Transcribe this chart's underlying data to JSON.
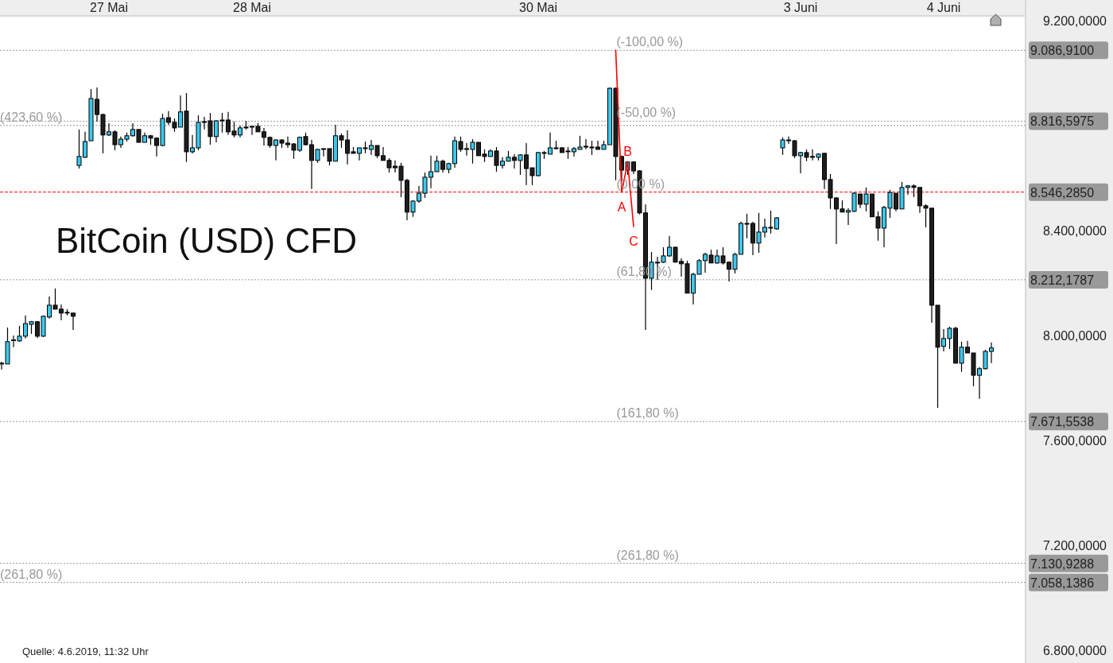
{
  "chart_data": {
    "type": "candlestick",
    "title": "BitCoin (USD) CFD",
    "annotations": [
      "Quelle: 4.6.2019, 11:32 Uhr",
      {
        "text": "(-100,00 %)",
        "y": 9086.91
      },
      {
        "text": "(-50,00 %)",
        "y": 8816.5975
      },
      {
        "text": "(0,00 %)",
        "y": 8546.285
      },
      {
        "text": "(61,80 %)",
        "y": 8212.1787
      },
      {
        "text": "(161,80 %)",
        "y": 7671.5538
      },
      {
        "text": "(261,80 %)",
        "y": 7130.9288
      },
      {
        "text": "(423,60 %)",
        "y": 8800
      },
      {
        "text": "(261,80 %)",
        "y": 7058.1386
      }
    ],
    "categories": [
      null,
      null,
      null,
      null,
      null,
      null,
      null,
      null,
      null,
      null,
      null,
      null,
      null,
      null,
      null,
      null,
      null,
      null,
      "27 Mai",
      null,
      null,
      null,
      null,
      null,
      null,
      null,
      null,
      null,
      null,
      null,
      null,
      null,
      null,
      null,
      null,
      null,
      null,
      null,
      null,
      null,
      null,
      null,
      "28 Mai",
      null,
      null,
      null,
      null,
      null,
      null,
      null,
      null,
      null,
      null,
      null,
      null,
      null,
      null,
      null,
      null,
      null,
      null,
      null,
      null,
      null,
      null,
      null,
      null,
      null,
      null,
      null,
      null,
      null,
      null,
      null,
      null,
      null,
      null,
      null,
      null,
      null,
      null,
      null,
      null,
      null,
      null,
      null,
      null,
      null,
      null,
      null,
      "30 Mai",
      null,
      null,
      null,
      null,
      null,
      null,
      null,
      null,
      null,
      null,
      null,
      null,
      null,
      null,
      null,
      null,
      null,
      null,
      null,
      null,
      null,
      null,
      null,
      null,
      null,
      null,
      null,
      null,
      null,
      null,
      null,
      null,
      null,
      null,
      null,
      null,
      null,
      null,
      null,
      null,
      null,
      null,
      null,
      "3 Juni",
      null,
      null,
      null,
      null,
      null,
      null,
      null,
      null,
      null,
      null,
      null,
      null,
      null,
      null,
      null,
      null,
      null,
      null,
      null,
      null,
      null,
      null,
      null,
      "4 Juni",
      null,
      null,
      null,
      null,
      null,
      null,
      null,
      null
    ],
    "colors": [
      "#3cc8ee",
      "#3cc8ee",
      "#3cc8ee",
      "#3cc8ee",
      "#3cc8ee",
      "#3cc8ee",
      "#1e1e1e",
      "#3cc8ee",
      "#3cc8ee",
      "#1e1e1e",
      "#1e1e1e",
      "#1e1e1e",
      "#1e1e1e",
      "#3cc8ee",
      "#3cc8ee",
      "#3cc8ee",
      "#1e1e1e",
      "#1e1e1e",
      "#3cc8ee",
      "#1e1e1e",
      "#3cc8ee",
      "#3cc8ee",
      "#3cc8ee",
      "#1e1e1e",
      "#3cc8ee",
      "#1e1e1e",
      "#1e1e1e",
      "#3cc8ee",
      "#1e1e1e",
      "#1e1e1e",
      "#3cc8ee",
      "#1e1e1e",
      "#3cc8ee",
      "#3cc8ee",
      "#3cc8ee",
      "#1e1e1e",
      "#3cc8ee",
      "#3cc8ee",
      "#1e1e1e",
      "#1e1e1e",
      "#3cc8ee",
      "#3cc8ee",
      "#3cc8ee",
      "#1e1e1e",
      "#1e1e1e",
      "#1e1e1e",
      "#3cc8ee",
      "#1e1e1e",
      "#1e1e1e",
      "#1e1e1e",
      "#3cc8ee",
      "#1e1e1e",
      "#1e1e1e",
      "#3cc8ee",
      "#3cc8ee",
      "#1e1e1e",
      "#3cc8ee",
      "#1e1e1e",
      "#1e1e1e",
      "#1e1e1e",
      "#3cc8ee",
      "#3cc8ee",
      "#3cc8ee",
      "#1e1e1e",
      "#1e1e1e",
      "#1e1e1e",
      "#1e1e1e",
      "#1e1e1e",
      "#1e1e1e",
      "#3cc8ee",
      "#3cc8ee",
      "#3cc8ee",
      "#3cc8ee",
      "#3cc8ee",
      "#1e1e1e",
      "#3cc8ee",
      "#3cc8ee",
      "#1e1e1e",
      "#3cc8ee",
      "#3cc8ee",
      "#1e1e1e",
      "#1e1e1e",
      "#3cc8ee",
      "#1e1e1e",
      "#3cc8ee",
      "#3cc8ee",
      "#1e1e1e",
      "#3cc8ee",
      "#1e1e1e",
      "#1e1e1e",
      "#3cc8ee",
      "#3cc8ee",
      "#3cc8ee",
      "#3cc8ee",
      "#1e1e1e",
      "#1e1e1e",
      "#3cc8ee",
      "#3cc8ee",
      "#3cc8ee",
      "#1e1e1e",
      "#1e1e1e",
      "#3cc8ee",
      "#3cc8ee",
      "#1e1e1e",
      "#1e1e1e",
      "#3cc8ee",
      "#1e1e1e",
      "#1e1e1e",
      "#1e1e1e",
      "#3cc8ee",
      "#3cc8ee",
      "#3cc8ee",
      "#3cc8ee",
      "#1e1e1e",
      "#1e1e1e",
      "#1e1e1e",
      "#3cc8ee",
      "#3cc8ee",
      "#3cc8ee",
      "#1e1e1e",
      "#3cc8ee",
      "#1e1e1e",
      "#1e1e1e",
      "#3cc8ee",
      "#3cc8ee",
      "#3cc8ee",
      "#1e1e1e",
      "#3cc8ee",
      "#3cc8ee",
      "#3cc8ee",
      "#3cc8ee",
      "#3cc8ee",
      "#3cc8ee",
      "#1e1e1e",
      "#3cc8ee",
      "#1e1e1e",
      "#1e1e1e",
      "#3cc8ee",
      "#1e1e1e",
      "#1e1e1e",
      "#1e1e1e",
      "#1e1e1e",
      "#3cc8ee",
      "#3cc8ee",
      "#1e1e1e",
      "#3cc8ee",
      "#1e1e1e",
      "#1e1e1e",
      "#3cc8ee",
      "#3cc8ee",
      "#1e1e1e",
      "#3cc8ee",
      "#3cc8ee",
      "#1e1e1e",
      "#1e1e1e",
      "#1e1e1e",
      "#1e1e1e",
      "#1e1e1e",
      "#3cc8ee",
      "#3cc8ee",
      "#1e1e1e",
      "#3cc8ee",
      "#1e1e1e",
      "#1e1e1e",
      "#3cc8ee",
      "#3cc8ee",
      "#3cc8ee"
    ],
    "ohlc": [
      [
        7891,
        7900,
        7870,
        7894
      ],
      [
        7891,
        8030,
        7891,
        7976
      ],
      [
        7980,
        8000,
        7955,
        7983
      ],
      [
        7979,
        8036,
        7976,
        7997
      ],
      [
        7997,
        8076,
        7988,
        8045
      ],
      [
        8042,
        8055,
        8006,
        8052
      ],
      [
        8052,
        8055,
        7990,
        7997
      ],
      [
        7997,
        8076,
        7994,
        8073
      ],
      [
        8070,
        8148,
        8064,
        8115
      ],
      [
        8115,
        8179,
        8100,
        8100
      ],
      [
        8100,
        8118,
        8058,
        8085
      ],
      [
        8088,
        8100,
        8076,
        8086
      ],
      [
        8085,
        8085,
        8021,
        8073
      ],
      [
        8648,
        8785,
        8636,
        8682
      ],
      [
        8679,
        8776,
        8676,
        8739
      ],
      [
        8742,
        8939,
        8742,
        8903
      ],
      [
        8900,
        8945,
        8815,
        8842
      ],
      [
        8842,
        8845,
        8694,
        8764
      ],
      [
        8764,
        8809,
        8760,
        8776
      ],
      [
        8776,
        8782,
        8706,
        8727
      ],
      [
        8727,
        8758,
        8715,
        8748
      ],
      [
        8748,
        8773,
        8739,
        8761
      ],
      [
        8761,
        8809,
        8758,
        8785
      ],
      [
        8785,
        8785,
        8736,
        8736
      ],
      [
        8736,
        8773,
        8736,
        8761
      ],
      [
        8761,
        8764,
        8727,
        8752
      ],
      [
        8752,
        8755,
        8682,
        8724
      ],
      [
        8724,
        8845,
        8721,
        8827
      ],
      [
        8830,
        8855,
        8803,
        8812
      ],
      [
        8812,
        8827,
        8776,
        8791
      ],
      [
        8794,
        8915,
        8794,
        8852
      ],
      [
        8855,
        8924,
        8661,
        8700
      ],
      [
        8700,
        8764,
        8694,
        8715
      ],
      [
        8715,
        8839,
        8706,
        8812
      ],
      [
        8812,
        8833,
        8785,
        8815
      ],
      [
        8818,
        8848,
        8727,
        8758
      ],
      [
        8758,
        8821,
        8736,
        8818
      ],
      [
        8818,
        8848,
        8773,
        8821
      ],
      [
        8821,
        8852,
        8764,
        8776
      ],
      [
        8779,
        8815,
        8755,
        8764
      ],
      [
        8764,
        8800,
        8755,
        8791
      ],
      [
        8791,
        8818,
        8785,
        8794
      ],
      [
        8794,
        8797,
        8764,
        8797
      ],
      [
        8797,
        8809,
        8776,
        8776
      ],
      [
        8776,
        8791,
        8724,
        8755
      ],
      [
        8755,
        8758,
        8715,
        8724
      ],
      [
        8724,
        8748,
        8667,
        8745
      ],
      [
        8745,
        8748,
        8715,
        8733
      ],
      [
        8733,
        8758,
        8715,
        8727
      ],
      [
        8730,
        8733,
        8673,
        8706
      ],
      [
        8706,
        8758,
        8700,
        8755
      ],
      [
        8758,
        8773,
        8724,
        8727
      ],
      [
        8727,
        8745,
        8558,
        8667
      ],
      [
        8667,
        8712,
        8658,
        8709
      ],
      [
        8709,
        8712,
        8682,
        8712
      ],
      [
        8712,
        8712,
        8648,
        8664
      ],
      [
        8664,
        8803,
        8664,
        8761
      ],
      [
        8761,
        8770,
        8715,
        8745
      ],
      [
        8745,
        8782,
        8652,
        8694
      ],
      [
        8700,
        8718,
        8694,
        8694
      ],
      [
        8694,
        8715,
        8667,
        8715
      ],
      [
        8712,
        8739,
        8694,
        8715
      ],
      [
        8709,
        8745,
        8688,
        8724
      ],
      [
        8724,
        8724,
        8676,
        8685
      ],
      [
        8685,
        8718,
        8667,
        8667
      ],
      [
        8667,
        8676,
        8621,
        8639
      ],
      [
        8645,
        8667,
        8621,
        8639
      ],
      [
        8645,
        8658,
        8527,
        8591
      ],
      [
        8591,
        8597,
        8439,
        8470
      ],
      [
        8470,
        8515,
        8452,
        8512
      ],
      [
        8512,
        8570,
        8506,
        8542
      ],
      [
        8542,
        8621,
        8524,
        8603
      ],
      [
        8603,
        8685,
        8561,
        8624
      ],
      [
        8624,
        8685,
        8624,
        8664
      ],
      [
        8664,
        8670,
        8621,
        8633
      ],
      [
        8633,
        8658,
        8618,
        8655
      ],
      [
        8655,
        8758,
        8639,
        8742
      ],
      [
        8739,
        8758,
        8700,
        8709
      ],
      [
        8709,
        8733,
        8685,
        8712
      ],
      [
        8709,
        8748,
        8655,
        8736
      ],
      [
        8736,
        8736,
        8685,
        8685
      ],
      [
        8691,
        8709,
        8661,
        8682
      ],
      [
        8682,
        8709,
        8682,
        8703
      ],
      [
        8703,
        8718,
        8624,
        8648
      ],
      [
        8648,
        8679,
        8636,
        8664
      ],
      [
        8664,
        8703,
        8664,
        8679
      ],
      [
        8679,
        8691,
        8636,
        8667
      ],
      [
        8667,
        8691,
        8612,
        8688
      ],
      [
        8688,
        8733,
        8573,
        8636
      ],
      [
        8639,
        8639,
        8573,
        8609
      ],
      [
        8609,
        8700,
        8606,
        8697
      ],
      [
        8694,
        8703,
        8673,
        8697
      ],
      [
        8691,
        8773,
        8691,
        8715
      ],
      [
        8712,
        8742,
        8709,
        8715
      ],
      [
        8715,
        8718,
        8697,
        8697
      ],
      [
        8703,
        8718,
        8673,
        8700
      ],
      [
        8700,
        8718,
        8682,
        8712
      ],
      [
        8709,
        8761,
        8709,
        8718
      ],
      [
        8718,
        8748,
        8709,
        8721
      ],
      [
        8718,
        8742,
        8688,
        8715
      ],
      [
        8718,
        8742,
        8709,
        8709
      ],
      [
        8709,
        8742,
        8709,
        8727
      ],
      [
        8727,
        8945,
        8727,
        8942
      ],
      [
        8942,
        8945,
        8591,
        8682
      ],
      [
        8682,
        8685,
        8591,
        8630
      ],
      [
        8630,
        8664,
        8612,
        8661
      ],
      [
        8661,
        8664,
        8615,
        8627
      ],
      [
        8627,
        8630,
        8461,
        8467
      ],
      [
        8467,
        8500,
        8021,
        8218
      ],
      [
        8218,
        8318,
        8173,
        8279
      ],
      [
        8276,
        8300,
        8212,
        8279
      ],
      [
        8279,
        8336,
        8276,
        8303
      ],
      [
        8303,
        8379,
        8300,
        8336
      ],
      [
        8336,
        8339,
        8279,
        8279
      ],
      [
        8282,
        8294,
        8224,
        8273
      ],
      [
        8273,
        8285,
        8161,
        8161
      ],
      [
        8161,
        8239,
        8118,
        8233
      ],
      [
        8233,
        8291,
        8233,
        8285
      ],
      [
        8285,
        8315,
        8239,
        8309
      ],
      [
        8306,
        8327,
        8276,
        8276
      ],
      [
        8276,
        8327,
        8273,
        8303
      ],
      [
        8303,
        8336,
        8270,
        8276
      ],
      [
        8279,
        8282,
        8206,
        8252
      ],
      [
        8252,
        8315,
        8236,
        8309
      ],
      [
        8309,
        8433,
        8309,
        8427
      ],
      [
        8424,
        8464,
        8370,
        8427
      ],
      [
        8427,
        8433,
        8306,
        8352
      ],
      [
        8352,
        8467,
        8315,
        8394
      ],
      [
        8394,
        8445,
        8373,
        8412
      ],
      [
        8409,
        8476,
        8388,
        8412
      ],
      [
        8406,
        8451,
        8403,
        8448
      ],
      [
        8715,
        8755,
        8688,
        8745
      ],
      [
        8742,
        8758,
        8730,
        8745
      ],
      [
        8742,
        8745,
        8676,
        8685
      ],
      [
        8685,
        8700,
        8618,
        8697
      ],
      [
        8697,
        8709,
        8664,
        8679
      ],
      [
        8682,
        8709,
        8667,
        8679
      ],
      [
        8679,
        8694,
        8667,
        8691
      ],
      [
        8694,
        8697,
        8558,
        8594
      ],
      [
        8594,
        8615,
        8482,
        8524
      ],
      [
        8524,
        8527,
        8348,
        8482
      ],
      [
        8482,
        8515,
        8470,
        8470
      ],
      [
        8470,
        8485,
        8421,
        8476
      ],
      [
        8473,
        8545,
        8470,
        8542
      ],
      [
        8539,
        8539,
        8485,
        8500
      ],
      [
        8500,
        8564,
        8473,
        8539
      ],
      [
        8539,
        8539,
        8452,
        8452
      ],
      [
        8452,
        8473,
        8361,
        8409
      ],
      [
        8409,
        8494,
        8336,
        8488
      ],
      [
        8485,
        8555,
        8448,
        8545
      ],
      [
        8542,
        8542,
        8473,
        8482
      ],
      [
        8482,
        8585,
        8482,
        8564
      ],
      [
        8564,
        8573,
        8536,
        8570
      ],
      [
        8570,
        8576,
        8527,
        8564
      ],
      [
        8564,
        8564,
        8467,
        8494
      ],
      [
        8494,
        8500,
        8412,
        8485
      ],
      [
        8485,
        8485,
        8048,
        8115
      ],
      [
        8115,
        8115,
        7724,
        7955
      ],
      [
        7958,
        8024,
        7939,
        7988
      ],
      [
        7988,
        8033,
        7948,
        8027
      ],
      [
        8027,
        8033,
        7894,
        7894
      ],
      [
        7894,
        7976,
        7861,
        7955
      ],
      [
        7955,
        7979,
        7933,
        7933
      ],
      [
        7933,
        7933,
        7806,
        7848
      ],
      [
        7848,
        7879,
        7758,
        7873
      ],
      [
        7873,
        7945,
        7870,
        7939
      ],
      [
        7939,
        7973,
        7894,
        7952
      ]
    ],
    "series": [
      {
        "type": "line",
        "color": "#ff0000",
        "values": [
          null,
          null,
          null,
          null,
          null,
          null,
          null,
          null,
          null,
          null,
          null,
          null,
          null,
          null,
          null,
          null,
          null,
          null,
          null,
          null,
          null,
          null,
          null,
          null,
          null,
          null,
          null,
          null,
          null,
          null,
          null,
          null,
          null,
          null,
          null,
          null,
          null,
          null,
          null,
          null,
          null,
          null,
          null,
          null,
          null,
          null,
          null,
          null,
          null,
          null,
          null,
          null,
          null,
          null,
          null,
          null,
          null,
          null,
          null,
          null,
          null,
          null,
          null,
          null,
          null,
          null,
          null,
          null,
          null,
          null,
          null,
          null,
          null,
          null,
          null,
          null,
          null,
          null,
          null,
          null,
          null,
          null,
          null,
          null,
          null,
          null,
          null,
          null,
          null,
          null,
          null,
          null,
          null,
          null,
          null,
          null,
          null,
          null,
          null,
          null,
          null,
          null,
          null,
          9087,
          8546,
          8661,
          8415,
          null,
          null,
          null,
          null,
          null,
          null,
          null,
          null,
          null,
          null,
          null,
          null,
          null,
          null,
          null,
          null,
          null,
          null,
          null,
          null,
          null,
          null,
          null,
          null,
          null,
          null,
          null,
          null,
          null,
          null,
          null,
          null,
          null,
          null,
          null,
          null,
          null,
          null,
          null,
          null,
          null,
          null,
          null,
          null,
          null,
          null,
          null,
          null,
          null,
          null,
          null,
          null,
          null,
          null,
          null,
          null,
          null,
          null,
          null,
          null
        ],
        "value_labels": [
          null,
          null,
          null,
          null,
          null,
          null,
          null,
          null,
          null,
          null,
          null,
          null,
          null,
          null,
          null,
          null,
          null,
          null,
          null,
          null,
          null,
          null,
          null,
          null,
          null,
          null,
          null,
          null,
          null,
          null,
          null,
          null,
          null,
          null,
          null,
          null,
          null,
          null,
          null,
          null,
          null,
          null,
          null,
          null,
          null,
          null,
          null,
          null,
          null,
          null,
          null,
          null,
          null,
          null,
          null,
          null,
          null,
          null,
          null,
          null,
          null,
          null,
          null,
          null,
          null,
          null,
          null,
          null,
          null,
          null,
          null,
          null,
          null,
          null,
          null,
          null,
          null,
          null,
          null,
          null,
          null,
          null,
          null,
          null,
          null,
          null,
          null,
          null,
          null,
          null,
          null,
          null,
          null,
          null,
          null,
          null,
          null,
          null,
          null,
          null,
          null,
          null,
          null,
          null,
          "A",
          "B",
          "C",
          null,
          null,
          null,
          null,
          null,
          null,
          null,
          null,
          null,
          null,
          null,
          null,
          null,
          null,
          null,
          null,
          null,
          null,
          null,
          null,
          null,
          null,
          null,
          null,
          null,
          null,
          null,
          null,
          null,
          null,
          null,
          null,
          null,
          null,
          null,
          null,
          null,
          null,
          null,
          null,
          null,
          null,
          null,
          null,
          null,
          null,
          null,
          null,
          null,
          null,
          null,
          null,
          null,
          null,
          null,
          null,
          null,
          null,
          null,
          null
        ]
      }
    ],
    "ylim": [
      6751,
      9218
    ],
    "yticks": [
      {
        "value": 9200,
        "label": "9.200,0000"
      },
      {
        "value": 8400,
        "label": "8.400,0000"
      },
      {
        "value": 8000,
        "label": "8.000,0000"
      },
      {
        "value": 7600,
        "label": "7.600,0000"
      },
      {
        "value": 7200,
        "label": "7.200,0000"
      },
      {
        "value": 6800,
        "label": "6.800,0000"
      }
    ],
    "ref_lines": [
      {
        "axis": "y",
        "value": 9086.91,
        "label": "9.086,9100",
        "color": "#999999",
        "line_style": "dotted"
      },
      {
        "axis": "y",
        "value": 8816.5975,
        "label": "8.816,5975",
        "color": "#999999",
        "line_style": "dotted"
      },
      {
        "axis": "y",
        "value": 8800,
        "color": "#999999",
        "line_style": "dotted"
      },
      {
        "axis": "y",
        "value": 8546.285,
        "label": "8.546,2850",
        "color": "#ff0000",
        "line_style": "dashed"
      },
      {
        "axis": "y",
        "value": 8212.1787,
        "label": "8.212,1787",
        "color": "#999999",
        "line_style": "dotted"
      },
      {
        "axis": "y",
        "value": 7671.5538,
        "label": "7.671,5538",
        "color": "#999999",
        "line_style": "dotted"
      },
      {
        "axis": "y",
        "value": 7130.9288,
        "label": "7.130,9288",
        "color": "#999999",
        "line_style": "dotted"
      },
      {
        "axis": "y",
        "value": 7058.1386,
        "label": "7.058,1386",
        "color": "#999999",
        "line_style": "dotted"
      }
    ]
  }
}
